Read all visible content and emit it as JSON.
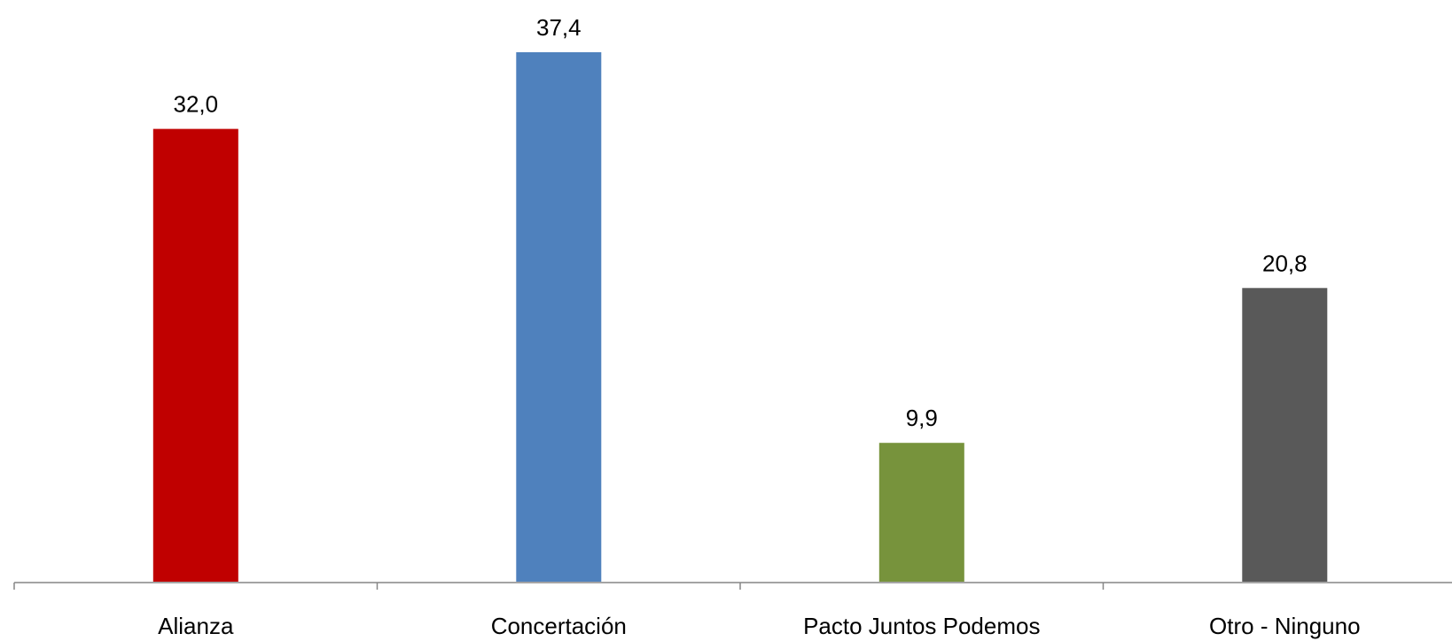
{
  "chart_data": {
    "type": "bar",
    "categories": [
      "Alianza",
      "Concertación",
      "Pacto Juntos Podemos",
      "Otro - Ninguno"
    ],
    "values": [
      32.0,
      37.4,
      9.9,
      20.8
    ],
    "value_labels": [
      "32,0",
      "37,4",
      "9,9",
      "20,8"
    ],
    "colors": [
      "#c00000",
      "#4f81bd",
      "#77933c",
      "#595959"
    ],
    "title": "",
    "xlabel": "",
    "ylabel": "",
    "ylim": [
      0,
      37.4
    ],
    "grid": false,
    "legend": "none"
  }
}
